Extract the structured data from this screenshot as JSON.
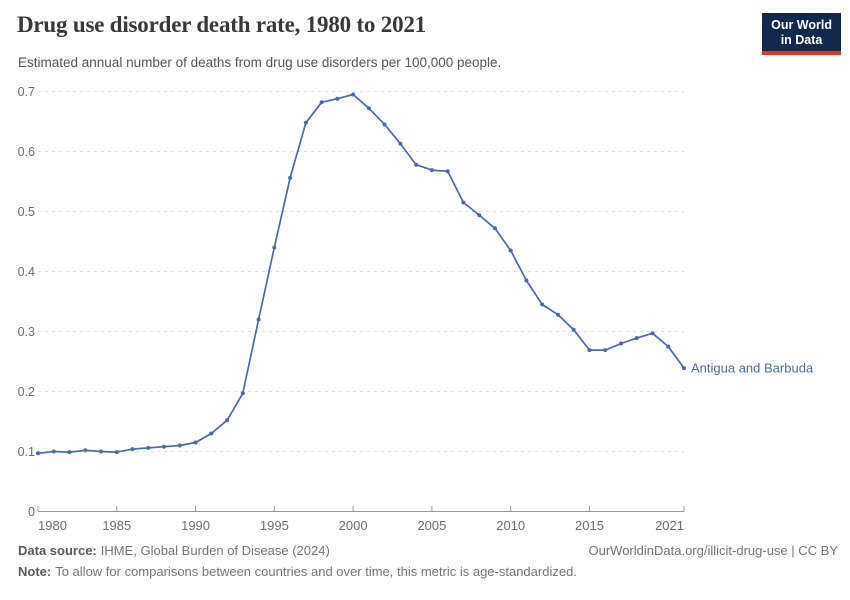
{
  "header": {
    "title": "Drug use disorder death rate, 1980 to 2021",
    "subtitle": "Estimated annual number of deaths from drug use disorders per 100,000 people.",
    "logo": {
      "line1": "Our World",
      "line2": "in Data",
      "bg_color": "#12294d",
      "accent_color": "#d93a2b"
    }
  },
  "chart_data": {
    "type": "line",
    "title": "Drug use disorder death rate, 1980 to 2021",
    "subtitle": "Estimated annual number of deaths from drug use disorders per 100,000 people.",
    "xlim": [
      1980,
      2021
    ],
    "ylim": [
      0,
      0.7
    ],
    "grid": "horizontal dashed gridlines on",
    "legend_position": "end-of-line label",
    "x_ticks": [
      {
        "label": "1980",
        "value": 1980,
        "anchor": "start"
      },
      {
        "label": "1985",
        "value": 1985,
        "anchor": "middle"
      },
      {
        "label": "1990",
        "value": 1990,
        "anchor": "middle"
      },
      {
        "label": "1995",
        "value": 1995,
        "anchor": "middle"
      },
      {
        "label": "2000",
        "value": 2000,
        "anchor": "middle"
      },
      {
        "label": "2005",
        "value": 2005,
        "anchor": "middle"
      },
      {
        "label": "2010",
        "value": 2010,
        "anchor": "middle"
      },
      {
        "label": "2015",
        "value": 2015,
        "anchor": "middle"
      },
      {
        "label": "2021",
        "value": 2021,
        "anchor": "end"
      }
    ],
    "y_ticks": [
      {
        "label": "0",
        "value": 0
      },
      {
        "label": "0.1",
        "value": 0.1
      },
      {
        "label": "0.2",
        "value": 0.2
      },
      {
        "label": "0.3",
        "value": 0.3
      },
      {
        "label": "0.4",
        "value": 0.4
      },
      {
        "label": "0.5",
        "value": 0.5
      },
      {
        "label": "0.6",
        "value": 0.6
      },
      {
        "label": "0.7",
        "value": 0.7
      }
    ],
    "series": [
      {
        "name": "Antigua and Barbuda",
        "color": "#4a6bab",
        "x": [
          1980,
          1981,
          1982,
          1983,
          1984,
          1985,
          1986,
          1987,
          1988,
          1989,
          1990,
          1991,
          1992,
          1993,
          1994,
          1995,
          1996,
          1997,
          1998,
          1999,
          2000,
          2001,
          2002,
          2003,
          2004,
          2005,
          2006,
          2007,
          2008,
          2009,
          2010,
          2011,
          2012,
          2013,
          2014,
          2015,
          2016,
          2017,
          2018,
          2019,
          2020,
          2021
        ],
        "values": [
          0.097,
          0.1,
          0.099,
          0.102,
          0.1,
          0.099,
          0.104,
          0.106,
          0.108,
          0.11,
          0.115,
          0.13,
          0.152,
          0.197,
          0.32,
          0.44,
          0.556,
          0.648,
          0.682,
          0.688,
          0.695,
          0.672,
          0.645,
          0.613,
          0.578,
          0.569,
          0.567,
          0.515,
          0.494,
          0.472,
          0.435,
          0.385,
          0.345,
          0.328,
          0.303,
          0.269,
          0.269,
          0.28,
          0.289,
          0.297,
          0.275,
          0.239
        ]
      }
    ],
    "colors": {
      "line": "#4a6bab",
      "gridline": "#dedede",
      "axis": "#999999",
      "tick_label": "#6e6e6e"
    }
  },
  "footer": {
    "data_source_label": "Data source:",
    "data_source_value": "IHME, Global Burden of Disease (2024)",
    "credit": "OurWorldinData.org/illicit-drug-use | CC BY",
    "note_label": "Note:",
    "note_value": "To allow for comparisons between countries and over time, this metric is age-standardized."
  }
}
